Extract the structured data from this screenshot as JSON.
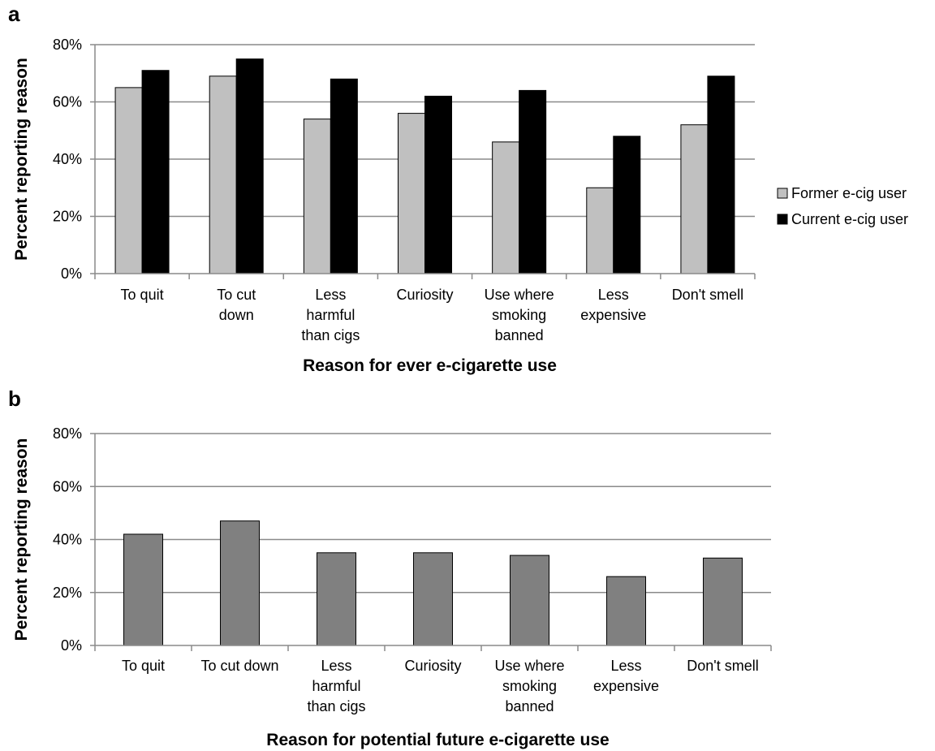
{
  "chart_data": [
    {
      "type": "bar",
      "panel_label": "a",
      "categories": [
        [
          "To quit"
        ],
        [
          "To cut",
          "down"
        ],
        [
          "Less",
          "harmful",
          "than cigs"
        ],
        [
          "Curiosity"
        ],
        [
          "Use where",
          "smoking",
          "banned"
        ],
        [
          "Less",
          "expensive"
        ],
        [
          "Don't smell"
        ]
      ],
      "series": [
        {
          "name": "Former e-cig user",
          "color": "#c0c0c0",
          "values": [
            65,
            69,
            54,
            56,
            46,
            30,
            52
          ]
        },
        {
          "name": "Current e-cig user",
          "color": "#000000",
          "values": [
            71,
            75,
            68,
            62,
            64,
            48,
            69
          ]
        }
      ],
      "xlabel": "Reason for ever e-cigarette use",
      "ylabel": "Percent reporting reason",
      "ylim": [
        0,
        80
      ],
      "yticks": [
        "0%",
        "20%",
        "40%",
        "60%",
        "80%"
      ],
      "grid": true,
      "legend": "right"
    },
    {
      "type": "bar",
      "panel_label": "b",
      "categories": [
        [
          "To quit"
        ],
        [
          "To cut down"
        ],
        [
          "Less",
          "harmful",
          "than cigs"
        ],
        [
          "Curiosity"
        ],
        [
          "Use where",
          "smoking",
          "banned"
        ],
        [
          "Less",
          "expensive"
        ],
        [
          "Don't smell"
        ]
      ],
      "series": [
        {
          "color": "#808080",
          "values": [
            42,
            47,
            35,
            35,
            34,
            26,
            33
          ]
        }
      ],
      "xlabel": "Reason for potential future e-cigarette use",
      "ylabel": "Percent reporting reason",
      "ylim": [
        0,
        80
      ],
      "yticks": [
        "0%",
        "20%",
        "40%",
        "60%",
        "80%"
      ],
      "grid": true
    }
  ]
}
